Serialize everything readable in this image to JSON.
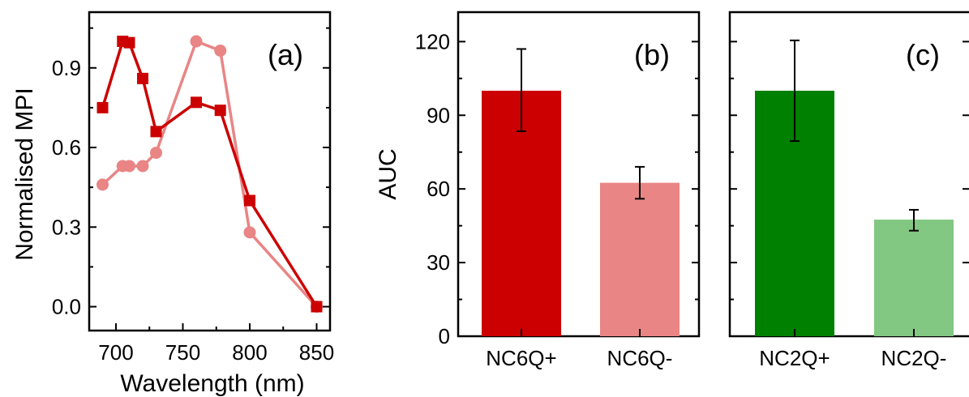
{
  "chart_data": [
    {
      "type": "line",
      "panel_label": "(a)",
      "xlabel": "Wavelength (nm)",
      "ylabel": "Normalised MPI",
      "xlim": [
        680,
        860
      ],
      "ylim": [
        -0.09,
        1.11
      ],
      "xticks": [
        "700",
        "750",
        "800",
        "850"
      ],
      "yticks": [
        "0.0",
        "0.3",
        "0.6",
        "0.9"
      ],
      "grid": false,
      "series": [
        {
          "marker": "square",
          "color": "#cc0000",
          "x": [
            690,
            705,
            710,
            720,
            730,
            760,
            778,
            800,
            850
          ],
          "y": [
            0.75,
            1.0,
            0.995,
            0.86,
            0.66,
            0.77,
            0.74,
            0.4,
            0.0
          ]
        },
        {
          "marker": "circle",
          "color": "#e98585",
          "x": [
            690,
            705,
            710,
            720,
            730,
            760,
            778,
            800,
            850
          ],
          "y": [
            0.46,
            0.53,
            0.53,
            0.53,
            0.58,
            1.0,
            0.965,
            0.28,
            0.0
          ]
        }
      ]
    },
    {
      "type": "bar",
      "panel_label": "(b)",
      "ylabel": "AUC",
      "ylim": [
        0,
        132
      ],
      "yticks": [
        "0",
        "30",
        "60",
        "90",
        "120"
      ],
      "categories": [
        "NC6Q+",
        "NC6Q-"
      ],
      "values": [
        100,
        62.5
      ],
      "errors_upper": [
        117,
        69
      ],
      "errors_lower": [
        83.5,
        56
      ],
      "colors": [
        "#cc0000",
        "#e98585"
      ]
    },
    {
      "type": "bar",
      "panel_label": "(c)",
      "ylim": [
        0,
        132
      ],
      "categories": [
        "NC2Q+",
        "NC2Q-"
      ],
      "values": [
        100,
        47.5
      ],
      "errors_upper": [
        120.5,
        51.5
      ],
      "errors_lower": [
        79.5,
        43
      ],
      "colors": [
        "#008000",
        "#82c782"
      ]
    }
  ]
}
